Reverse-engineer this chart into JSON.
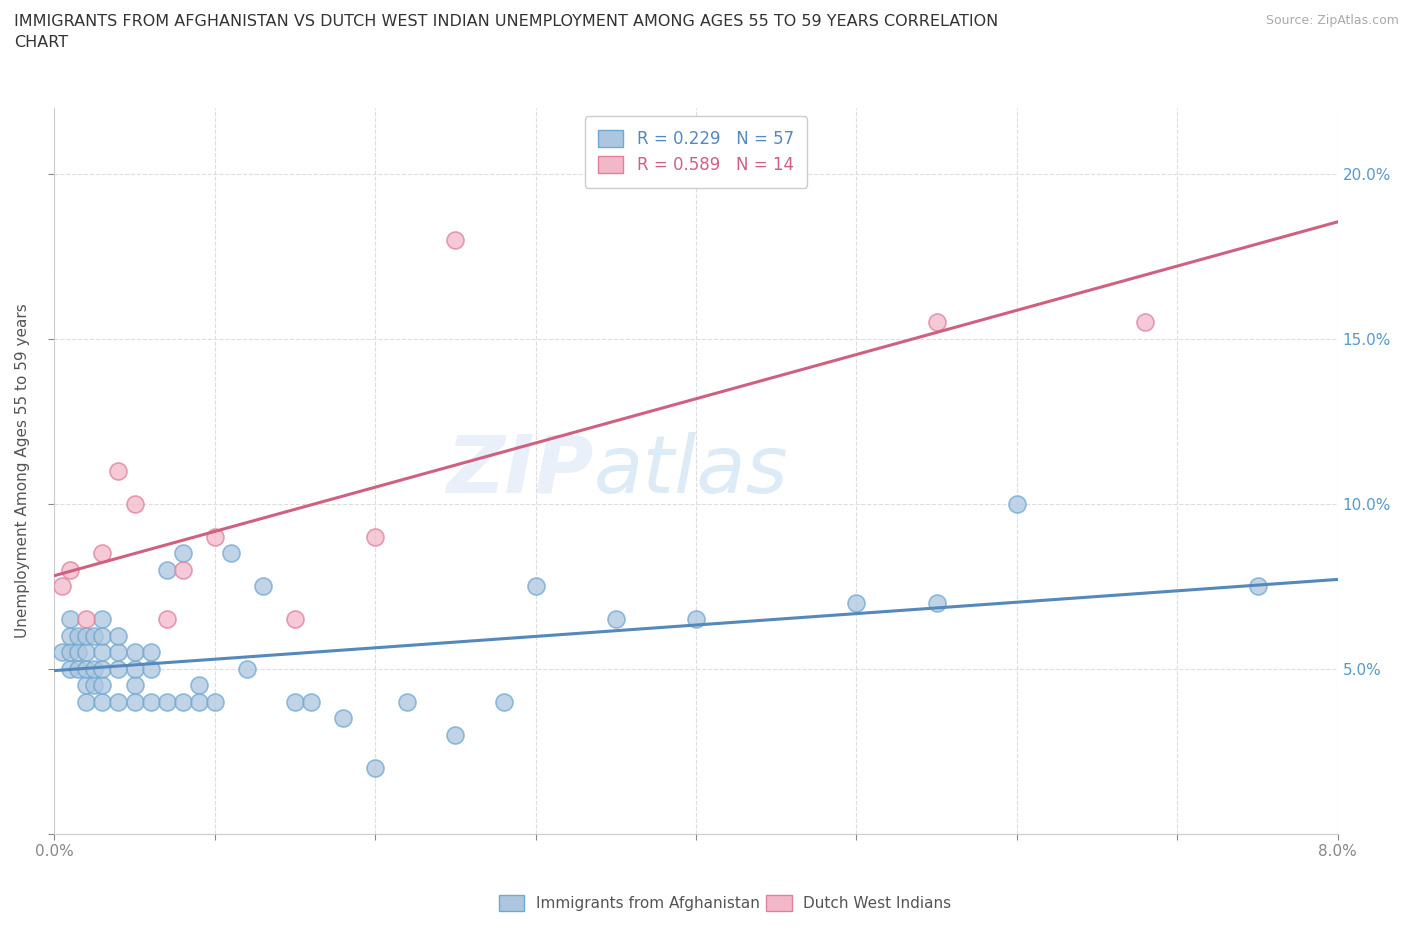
{
  "title": "IMMIGRANTS FROM AFGHANISTAN VS DUTCH WEST INDIAN UNEMPLOYMENT AMONG AGES 55 TO 59 YEARS CORRELATION\nCHART",
  "source": "Source: ZipAtlas.com",
  "ylabel": "Unemployment Among Ages 55 to 59 years",
  "xlim": [
    0.0,
    0.08
  ],
  "ylim": [
    0.0,
    0.22
  ],
  "xticks": [
    0.0,
    0.01,
    0.02,
    0.03,
    0.04,
    0.05,
    0.06,
    0.07,
    0.08
  ],
  "yticks": [
    0.0,
    0.05,
    0.1,
    0.15,
    0.2
  ],
  "ytick_labels": [
    "",
    "5.0%",
    "10.0%",
    "15.0%",
    "20.0%"
  ],
  "xtick_labels": [
    "0.0%",
    "",
    "",
    "",
    "",
    "",
    "",
    "",
    "8.0%"
  ],
  "afghanistan_color": "#adc6e0",
  "afghanistan_edge": "#6fa8d0",
  "dwi_color": "#f2b8ca",
  "dwi_edge": "#e08098",
  "line_afghanistan": "#5588bb",
  "line_dwi": "#d06080",
  "background_color": "#ffffff",
  "grid_color": "#dddddd",
  "watermark_text": "ZIP",
  "watermark_text2": "atlas",
  "legend_R_afg": "R = 0.229",
  "legend_N_afg": "N = 57",
  "legend_R_dwi": "R = 0.589",
  "legend_N_dwi": "N = 14",
  "afghanistan_x": [
    0.0005,
    0.001,
    0.001,
    0.001,
    0.001,
    0.0015,
    0.0015,
    0.0015,
    0.002,
    0.002,
    0.002,
    0.002,
    0.002,
    0.0025,
    0.0025,
    0.0025,
    0.003,
    0.003,
    0.003,
    0.003,
    0.003,
    0.003,
    0.004,
    0.004,
    0.004,
    0.004,
    0.005,
    0.005,
    0.005,
    0.005,
    0.006,
    0.006,
    0.006,
    0.007,
    0.007,
    0.008,
    0.008,
    0.009,
    0.009,
    0.01,
    0.011,
    0.012,
    0.013,
    0.015,
    0.016,
    0.018,
    0.02,
    0.022,
    0.025,
    0.028,
    0.03,
    0.035,
    0.04,
    0.05,
    0.055,
    0.06,
    0.075
  ],
  "afghanistan_y": [
    0.055,
    0.05,
    0.055,
    0.06,
    0.065,
    0.05,
    0.055,
    0.06,
    0.04,
    0.045,
    0.05,
    0.055,
    0.06,
    0.045,
    0.05,
    0.06,
    0.04,
    0.045,
    0.05,
    0.055,
    0.06,
    0.065,
    0.04,
    0.05,
    0.055,
    0.06,
    0.04,
    0.045,
    0.05,
    0.055,
    0.04,
    0.05,
    0.055,
    0.04,
    0.08,
    0.04,
    0.085,
    0.04,
    0.045,
    0.04,
    0.085,
    0.05,
    0.075,
    0.04,
    0.04,
    0.035,
    0.02,
    0.04,
    0.03,
    0.04,
    0.075,
    0.065,
    0.065,
    0.07,
    0.07,
    0.1,
    0.075
  ],
  "dwi_x": [
    0.0005,
    0.001,
    0.002,
    0.003,
    0.004,
    0.005,
    0.007,
    0.008,
    0.01,
    0.015,
    0.02,
    0.025,
    0.055,
    0.068
  ],
  "dwi_y": [
    0.075,
    0.08,
    0.065,
    0.085,
    0.11,
    0.1,
    0.065,
    0.08,
    0.09,
    0.065,
    0.09,
    0.18,
    0.155,
    0.155
  ]
}
